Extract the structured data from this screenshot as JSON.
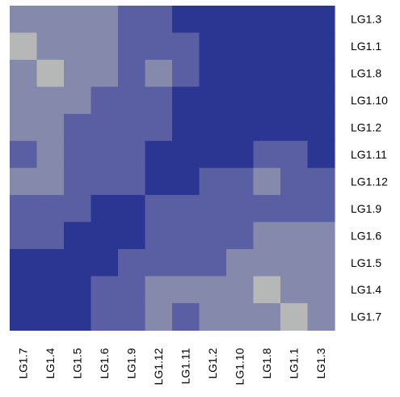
{
  "chart_data": {
    "type": "heatmap",
    "title": "",
    "xlabel": "",
    "ylabel": "",
    "x_categories": [
      "LG1.7",
      "LG1.4",
      "LG1.5",
      "LG1.6",
      "LG1.9",
      "LG1.12",
      "LG1.11",
      "LG1.2",
      "LG1.10",
      "LG1.8",
      "LG1.1",
      "LG1.3"
    ],
    "y_categories": [
      "LG1.3",
      "LG1.1",
      "LG1.8",
      "LG1.10",
      "LG1.2",
      "LG1.11",
      "LG1.12",
      "LG1.9",
      "LG1.6",
      "LG1.5",
      "LG1.4",
      "LG1.7"
    ],
    "level_colors": [
      "#2b3592",
      "#5a5fa4",
      "#8589ac",
      "#b6b8b7"
    ],
    "levels": [
      [
        2,
        2,
        2,
        2,
        1,
        1,
        0,
        0,
        0,
        0,
        0,
        0
      ],
      [
        3,
        2,
        2,
        2,
        1,
        1,
        1,
        0,
        0,
        0,
        0,
        0
      ],
      [
        2,
        3,
        2,
        2,
        1,
        2,
        1,
        0,
        0,
        0,
        0,
        0
      ],
      [
        2,
        2,
        2,
        1,
        1,
        1,
        0,
        0,
        0,
        0,
        0,
        0
      ],
      [
        2,
        2,
        1,
        1,
        1,
        1,
        0,
        0,
        0,
        0,
        0,
        0
      ],
      [
        1,
        2,
        1,
        1,
        1,
        0,
        0,
        0,
        0,
        1,
        1,
        0
      ],
      [
        2,
        2,
        1,
        1,
        1,
        0,
        0,
        1,
        1,
        2,
        1,
        1
      ],
      [
        1,
        1,
        1,
        0,
        0,
        1,
        1,
        1,
        1,
        1,
        1,
        1
      ],
      [
        1,
        1,
        0,
        0,
        0,
        1,
        1,
        1,
        1,
        2,
        2,
        2
      ],
      [
        0,
        0,
        0,
        0,
        1,
        1,
        1,
        1,
        2,
        2,
        2,
        2
      ],
      [
        0,
        0,
        0,
        1,
        1,
        2,
        2,
        2,
        2,
        3,
        2,
        2
      ],
      [
        0,
        0,
        0,
        1,
        1,
        2,
        1,
        2,
        2,
        2,
        3,
        2
      ]
    ],
    "legend": "none",
    "grid": false
  }
}
